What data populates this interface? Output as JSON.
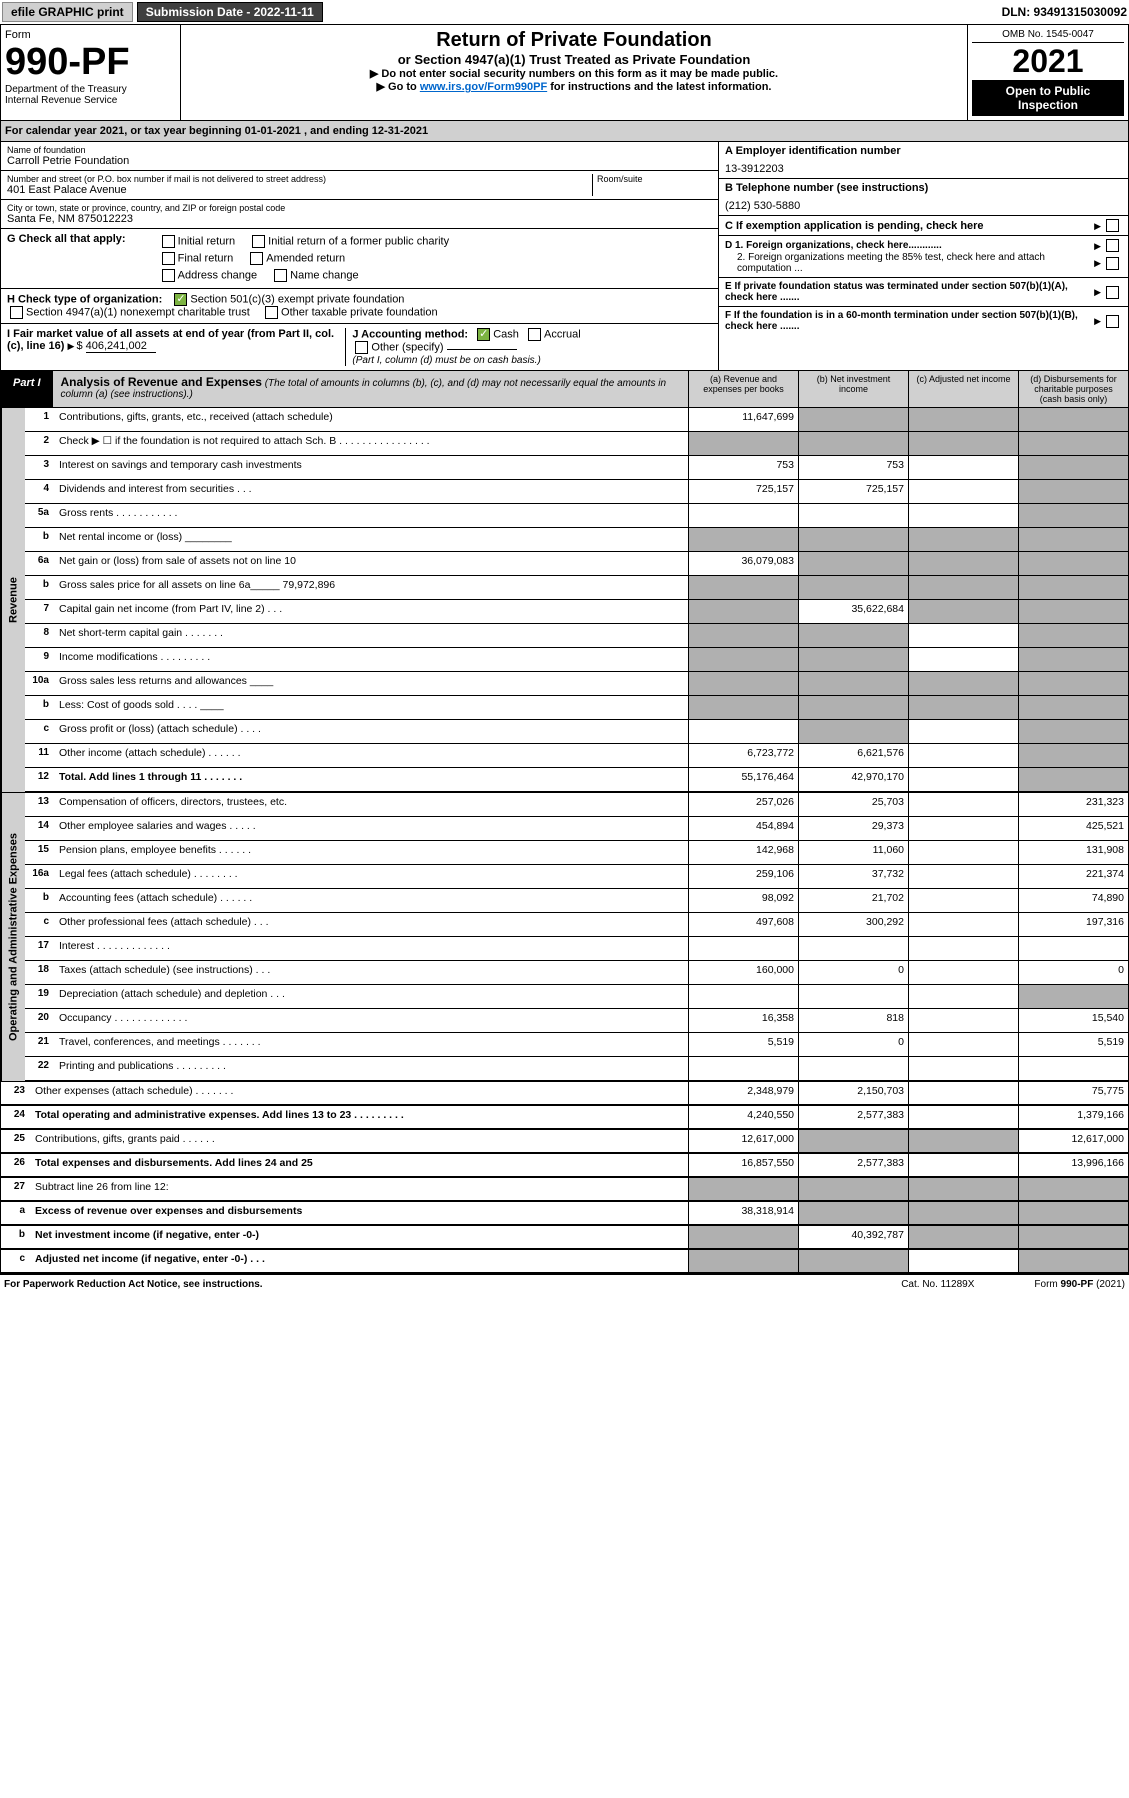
{
  "top": {
    "efile": "efile GRAPHIC print",
    "submission": "Submission Date - 2022-11-11",
    "dln": "DLN: 93491315030092"
  },
  "header": {
    "form_label": "Form",
    "form_num": "990-PF",
    "dept": "Department of the Treasury",
    "irs": "Internal Revenue Service",
    "title": "Return of Private Foundation",
    "subtitle": "or Section 4947(a)(1) Trust Treated as Private Foundation",
    "instr1": "▶ Do not enter social security numbers on this form as it may be made public.",
    "instr2_pre": "▶ Go to ",
    "instr2_link": "www.irs.gov/Form990PF",
    "instr2_post": " for instructions and the latest information.",
    "omb": "OMB No. 1545-0047",
    "year": "2021",
    "open": "Open to Public Inspection"
  },
  "calyear": "For calendar year 2021, or tax year beginning 01-01-2021               , and ending 12-31-2021",
  "info": {
    "name_lbl": "Name of foundation",
    "name": "Carroll Petrie Foundation",
    "addr_lbl": "Number and street (or P.O. box number if mail is not delivered to street address)",
    "addr": "401 East Palace Avenue",
    "room_lbl": "Room/suite",
    "city_lbl": "City or town, state or province, country, and ZIP or foreign postal code",
    "city": "Santa Fe, NM  875012223",
    "a_lbl": "A Employer identification number",
    "a_val": "13-3912203",
    "b_lbl": "B Telephone number (see instructions)",
    "b_val": "(212) 530-5880",
    "c_lbl": "C If exemption application is pending, check here",
    "d1": "D 1. Foreign organizations, check here............",
    "d2": "2. Foreign organizations meeting the 85% test, check here and attach computation ...",
    "e": "E   If private foundation status was terminated under section 507(b)(1)(A), check here .......",
    "f": "F   If the foundation is in a 60-month termination under section 507(b)(1)(B), check here .......",
    "g_lbl": "G Check all that apply:",
    "g_opts": [
      "Initial return",
      "Initial return of a former public charity",
      "Final return",
      "Amended return",
      "Address change",
      "Name change"
    ],
    "h_lbl": "H Check type of organization:",
    "h_opts": [
      "Section 501(c)(3) exempt private foundation",
      "Section 4947(a)(1) nonexempt charitable trust",
      "Other taxable private foundation"
    ],
    "i_lbl": "I Fair market value of all assets at end of year (from Part II, col. (c), line 16)",
    "i_val": "406,241,002",
    "j_lbl": "J Accounting method:",
    "j_opts": [
      "Cash",
      "Accrual"
    ],
    "j_other": "Other (specify)",
    "j_note": "(Part I, column (d) must be on cash basis.)"
  },
  "part1": {
    "label": "Part I",
    "title": "Analysis of Revenue and Expenses",
    "note": "(The total of amounts in columns (b), (c), and (d) may not necessarily equal the amounts in column (a) (see instructions).)",
    "cols": [
      "(a)   Revenue and expenses per books",
      "(b)   Net investment income",
      "(c)   Adjusted net income",
      "(d)   Disbursements for charitable purposes (cash basis only)"
    ]
  },
  "sections": {
    "revenue": "Revenue",
    "opex": "Operating and Administrative Expenses"
  },
  "rows": [
    {
      "n": "1",
      "d": "Contributions, gifts, grants, etc., received (attach schedule)",
      "a": "11,647,699",
      "b": "g",
      "c": "g",
      "dd": "g"
    },
    {
      "n": "2",
      "d": "Check ▶ ☐ if the foundation is not required to attach Sch. B    .  .  .  .  .  .  .  .  .  .  .  .  .  .  .  .",
      "a": "g",
      "b": "g",
      "c": "g",
      "dd": "g"
    },
    {
      "n": "3",
      "d": "Interest on savings and temporary cash investments",
      "a": "753",
      "b": "753",
      "c": "",
      "dd": "g"
    },
    {
      "n": "4",
      "d": "Dividends and interest from securities   .   .   .",
      "a": "725,157",
      "b": "725,157",
      "c": "",
      "dd": "g"
    },
    {
      "n": "5a",
      "d": "Gross rents     .   .   .   .   .   .   .   .   .   .   .",
      "a": "",
      "b": "",
      "c": "",
      "dd": "g"
    },
    {
      "n": "b",
      "d": "Net rental income or (loss)  ________",
      "a": "g",
      "b": "g",
      "c": "g",
      "dd": "g"
    },
    {
      "n": "6a",
      "d": "Net gain or (loss) from sale of assets not on line 10",
      "a": "36,079,083",
      "b": "g",
      "c": "g",
      "dd": "g"
    },
    {
      "n": "b",
      "d": "Gross sales price for all assets on line 6a_____ 79,972,896",
      "a": "g",
      "b": "g",
      "c": "g",
      "dd": "g"
    },
    {
      "n": "7",
      "d": "Capital gain net income (from Part IV, line 2)   .   .   .",
      "a": "g",
      "b": "35,622,684",
      "c": "g",
      "dd": "g"
    },
    {
      "n": "8",
      "d": "Net short-term capital gain   .   .   .   .   .   .   .",
      "a": "g",
      "b": "g",
      "c": "",
      "dd": "g"
    },
    {
      "n": "9",
      "d": "Income modifications  .   .   .   .   .   .   .   .   .",
      "a": "g",
      "b": "g",
      "c": "",
      "dd": "g"
    },
    {
      "n": "10a",
      "d": "Gross sales less returns and allowances  ____",
      "a": "g",
      "b": "g",
      "c": "g",
      "dd": "g"
    },
    {
      "n": "b",
      "d": "Less: Cost of goods sold     .   .   .   .  ____",
      "a": "g",
      "b": "g",
      "c": "g",
      "dd": "g"
    },
    {
      "n": "c",
      "d": "Gross profit or (loss) (attach schedule)    .   .   .   .",
      "a": "",
      "b": "g",
      "c": "",
      "dd": "g"
    },
    {
      "n": "11",
      "d": "Other income (attach schedule)   .   .   .   .   .   .",
      "a": "6,723,772",
      "b": "6,621,576",
      "c": "",
      "dd": "g"
    },
    {
      "n": "12",
      "d": "Total. Add lines 1 through 11   .   .   .   .   .   .   .",
      "a": "55,176,464",
      "b": "42,970,170",
      "c": "",
      "dd": "g",
      "bold": true
    },
    {
      "n": "13",
      "d": "Compensation of officers, directors, trustees, etc.",
      "a": "257,026",
      "b": "25,703",
      "c": "",
      "dd": "231,323"
    },
    {
      "n": "14",
      "d": "Other employee salaries and wages   .   .   .   .   .",
      "a": "454,894",
      "b": "29,373",
      "c": "",
      "dd": "425,521"
    },
    {
      "n": "15",
      "d": "Pension plans, employee benefits  .   .   .   .   .   .",
      "a": "142,968",
      "b": "11,060",
      "c": "",
      "dd": "131,908"
    },
    {
      "n": "16a",
      "d": "Legal fees (attach schedule) .   .   .   .   .   .   .   .",
      "a": "259,106",
      "b": "37,732",
      "c": "",
      "dd": "221,374"
    },
    {
      "n": "b",
      "d": "Accounting fees (attach schedule)  .   .   .   .   .   .",
      "a": "98,092",
      "b": "21,702",
      "c": "",
      "dd": "74,890"
    },
    {
      "n": "c",
      "d": "Other professional fees (attach schedule)    .   .   .",
      "a": "497,608",
      "b": "300,292",
      "c": "",
      "dd": "197,316"
    },
    {
      "n": "17",
      "d": "Interest  .   .   .   .   .   .   .   .   .   .   .   .   .",
      "a": "",
      "b": "",
      "c": "",
      "dd": ""
    },
    {
      "n": "18",
      "d": "Taxes (attach schedule) (see instructions)    .   .   .",
      "a": "160,000",
      "b": "0",
      "c": "",
      "dd": "0"
    },
    {
      "n": "19",
      "d": "Depreciation (attach schedule) and depletion   .   .   .",
      "a": "",
      "b": "",
      "c": "",
      "dd": "g"
    },
    {
      "n": "20",
      "d": "Occupancy .   .   .   .   .   .   .   .   .   .   .   .   .",
      "a": "16,358",
      "b": "818",
      "c": "",
      "dd": "15,540"
    },
    {
      "n": "21",
      "d": "Travel, conferences, and meetings .   .   .   .   .   .   .",
      "a": "5,519",
      "b": "0",
      "c": "",
      "dd": "5,519"
    },
    {
      "n": "22",
      "d": "Printing and publications .   .   .   .   .   .   .   .   .",
      "a": "",
      "b": "",
      "c": "",
      "dd": ""
    },
    {
      "n": "23",
      "d": "Other expenses (attach schedule) .   .   .   .   .   .   .",
      "a": "2,348,979",
      "b": "2,150,703",
      "c": "",
      "dd": "75,775"
    },
    {
      "n": "24",
      "d": "Total operating and administrative expenses. Add lines 13 to 23   .   .   .   .   .   .   .   .   .",
      "a": "4,240,550",
      "b": "2,577,383",
      "c": "",
      "dd": "1,379,166",
      "bold": true
    },
    {
      "n": "25",
      "d": "Contributions, gifts, grants paid    .   .   .   .   .   .",
      "a": "12,617,000",
      "b": "g",
      "c": "g",
      "dd": "12,617,000"
    },
    {
      "n": "26",
      "d": "Total expenses and disbursements. Add lines 24 and 25",
      "a": "16,857,550",
      "b": "2,577,383",
      "c": "",
      "dd": "13,996,166",
      "bold": true
    },
    {
      "n": "27",
      "d": "Subtract line 26 from line 12:",
      "a": "g",
      "b": "g",
      "c": "g",
      "dd": "g"
    },
    {
      "n": "a",
      "d": "Excess of revenue over expenses and disbursements",
      "a": "38,318,914",
      "b": "g",
      "c": "g",
      "dd": "g",
      "bold": true
    },
    {
      "n": "b",
      "d": "Net investment income (if negative, enter -0-)",
      "a": "g",
      "b": "40,392,787",
      "c": "g",
      "dd": "g",
      "bold": true
    },
    {
      "n": "c",
      "d": "Adjusted net income (if negative, enter -0-)   .   .   .",
      "a": "g",
      "b": "g",
      "c": "",
      "dd": "g",
      "bold": true
    }
  ],
  "footer": {
    "left": "For Paperwork Reduction Act Notice, see instructions.",
    "mid": "Cat. No. 11289X",
    "right": "Form 990-PF (2021)"
  }
}
